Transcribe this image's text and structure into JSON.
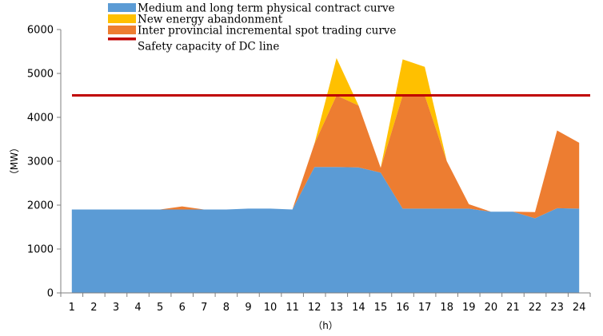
{
  "chart_data": {
    "type": "area",
    "x": [
      1,
      2,
      3,
      4,
      5,
      6,
      7,
      8,
      9,
      10,
      11,
      12,
      13,
      14,
      15,
      16,
      17,
      18,
      19,
      20,
      21,
      22,
      23,
      24
    ],
    "xlabel": "（h）",
    "ylabel": "（MW）",
    "ylim": [
      0,
      6000
    ],
    "yticks": [
      0,
      1000,
      2000,
      3000,
      4000,
      5000,
      6000
    ],
    "stacked": true,
    "grid": false,
    "legend_position": "top",
    "series": [
      {
        "name": "Medium and long term physical contract curve",
        "color": "#5b9bd5",
        "values": [
          1900,
          1900,
          1900,
          1900,
          1900,
          1900,
          1900,
          1900,
          1920,
          1920,
          1900,
          2870,
          2870,
          2860,
          2740,
          1920,
          1920,
          1920,
          1920,
          1850,
          1850,
          1700,
          1930,
          1920
        ]
      },
      {
        "name": "Inter provincial incremental spot trading curve",
        "color": "#ed7d31",
        "values": [
          0,
          0,
          0,
          0,
          0,
          70,
          0,
          0,
          0,
          0,
          0,
          530,
          1630,
          1410,
          110,
          2580,
          2580,
          1080,
          100,
          0,
          0,
          140,
          1770,
          1500
        ]
      },
      {
        "name": "New energy abandonment",
        "color": "#ffc000",
        "values": [
          0,
          0,
          0,
          0,
          0,
          0,
          0,
          0,
          0,
          0,
          0,
          0,
          850,
          0,
          0,
          820,
          650,
          0,
          0,
          0,
          0,
          0,
          0,
          0
        ]
      }
    ],
    "lines": [
      {
        "name": "Safety capacity of DC line",
        "color": "#c00000",
        "value": 4500
      }
    ],
    "legend_order": [
      "Medium and long term physical contract curve",
      "New energy abandonment",
      "Inter provincial incremental spot trading curve",
      "Safety capacity of DC line"
    ]
  }
}
